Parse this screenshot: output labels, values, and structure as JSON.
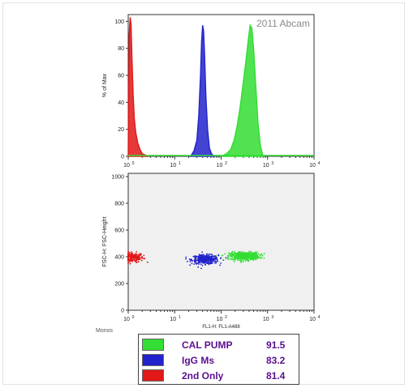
{
  "watermark": "2011 Abcam",
  "gate_label": "Monos",
  "colors": {
    "green": "#33dd33",
    "blue": "#2323cc",
    "red": "#e01818"
  },
  "chart_data": [
    {
      "type": "area",
      "xlabel": "",
      "ylabel": "% of Max",
      "xscale": "log",
      "xlim": [
        1,
        10000
      ],
      "ylim": [
        0,
        105
      ],
      "ytick_labels": [
        "0",
        "20",
        "40",
        "60",
        "80",
        "100"
      ],
      "xtick_exponents": [
        "0",
        "1",
        "2",
        "3",
        "4"
      ],
      "series": [
        {
          "name": "2nd Only",
          "color": "#e01818",
          "x": [
            1.0,
            1.05,
            1.1,
            1.15,
            1.2,
            1.28,
            1.35,
            1.45,
            1.6,
            1.8,
            2.0,
            2.3,
            2.7
          ],
          "y": [
            0,
            90,
            103,
            98,
            75,
            45,
            28,
            18,
            10,
            5,
            2,
            1,
            0
          ]
        },
        {
          "name": "IgG Ms",
          "color": "#2323cc",
          "x": [
            22,
            26,
            30,
            33,
            36,
            38,
            40,
            42,
            44,
            47,
            51,
            56,
            62,
            70
          ],
          "y": [
            0,
            4,
            12,
            30,
            60,
            85,
            97,
            93,
            75,
            45,
            20,
            6,
            2,
            0
          ]
        },
        {
          "name": "CAL PUMP",
          "color": "#33dd33",
          "x": [
            100,
            130,
            160,
            190,
            220,
            260,
            300,
            340,
            380,
            420,
            460,
            500,
            550,
            620,
            700,
            800
          ],
          "y": [
            0,
            2,
            5,
            12,
            22,
            38,
            55,
            70,
            85,
            97,
            95,
            80,
            55,
            25,
            8,
            0
          ]
        }
      ]
    },
    {
      "type": "scatter",
      "xlabel": "FL1-H: FL1-A488",
      "ylabel": "FSC-H: FSC-Height",
      "xscale": "log",
      "xlim": [
        1,
        10000
      ],
      "ylim": [
        0,
        1024
      ],
      "ytick_labels": [
        "0",
        "200",
        "400",
        "600",
        "800",
        "1000"
      ],
      "xtick_exponents": [
        "0",
        "1",
        "2",
        "3",
        "4"
      ],
      "series": [
        {
          "name": "2nd Only",
          "color": "#e01818",
          "x_center": 1.2,
          "x_spread": 1.5,
          "y_center": 395,
          "y_spread": 30
        },
        {
          "name": "IgG Ms",
          "color": "#2323cc",
          "x_center": 45,
          "x_spread": 1.6,
          "y_center": 380,
          "y_spread": 28
        },
        {
          "name": "CAL PUMP",
          "color": "#33dd33",
          "x_center": 320,
          "x_spread": 1.7,
          "y_center": 405,
          "y_spread": 25
        }
      ]
    }
  ],
  "legend": [
    {
      "name": "CAL PUMP",
      "value": "91.5",
      "color": "#33dd33"
    },
    {
      "name": "IgG Ms",
      "value": "83.2",
      "color": "#2323cc"
    },
    {
      "name": "2nd Only",
      "value": "81.4",
      "color": "#e01818"
    }
  ]
}
